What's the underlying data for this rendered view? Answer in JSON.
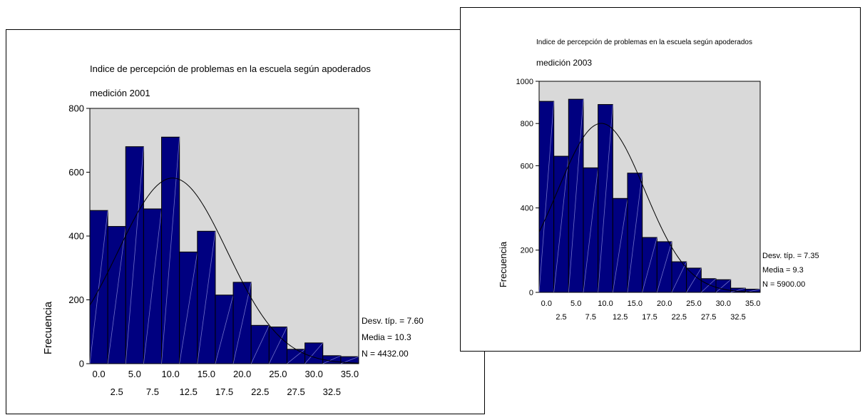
{
  "chart_data": [
    {
      "type": "bar",
      "title": "Indice de percepción de problemas en la escuela según apoderados",
      "subtitle": "medición 2001",
      "ylabel": "Frecuencia",
      "xlabel": "",
      "ylim": [
        0,
        800
      ],
      "yticks": [
        0,
        200,
        400,
        600,
        800
      ],
      "xlim": [
        -1.25,
        36.25
      ],
      "xticks_top": [
        "0.0",
        "5.0",
        "10.0",
        "15.0",
        "20.0",
        "25.0",
        "30.0",
        "35.0"
      ],
      "xticks_bottom": [
        "2.5",
        "7.5",
        "12.5",
        "17.5",
        "22.5",
        "27.5",
        "32.5"
      ],
      "bin_width": 2.5,
      "bin_centers": [
        0,
        2.5,
        5,
        7.5,
        10,
        12.5,
        15,
        17.5,
        20,
        22.5,
        25,
        27.5,
        30,
        32.5,
        35
      ],
      "values": [
        480,
        430,
        680,
        485,
        710,
        350,
        415,
        215,
        255,
        120,
        115,
        45,
        65,
        25,
        22
      ],
      "normal_curve": {
        "mean": 10.3,
        "sd": 7.6,
        "n": 4432
      },
      "stats": [
        "Desv. típ. = 7.60",
        "Media = 10.3",
        "N = 4432.00"
      ],
      "plot_bg": "#d9d9d9",
      "bar_color": "#000080"
    },
    {
      "type": "bar",
      "title": "Indice de percepción de problemas en la escuela según apoderados",
      "subtitle": "medición 2003",
      "ylabel": "Frecuencia",
      "xlabel": "",
      "ylim": [
        0,
        1000
      ],
      "yticks": [
        0,
        200,
        400,
        600,
        800,
        1000
      ],
      "xlim": [
        -1.25,
        36.25
      ],
      "xticks_top": [
        "0.0",
        "5.0",
        "10.0",
        "15.0",
        "20.0",
        "25.0",
        "30.0",
        "35.0"
      ],
      "xticks_bottom": [
        "2.5",
        "7.5",
        "12.5",
        "17.5",
        "22.5",
        "27.5",
        "32.5"
      ],
      "bin_width": 2.5,
      "bin_centers": [
        0,
        2.5,
        5,
        7.5,
        10,
        12.5,
        15,
        17.5,
        20,
        22.5,
        25,
        27.5,
        30,
        32.5,
        35
      ],
      "values": [
        905,
        645,
        915,
        590,
        890,
        445,
        565,
        260,
        240,
        145,
        115,
        65,
        60,
        20,
        15
      ],
      "normal_curve": {
        "mean": 9.3,
        "sd": 7.35,
        "n": 5900
      },
      "stats": [
        "Desv. típ. = 7.35",
        "Media = 9.3",
        "N = 5900.00"
      ],
      "plot_bg": "#d9d9d9",
      "bar_color": "#000080"
    }
  ]
}
